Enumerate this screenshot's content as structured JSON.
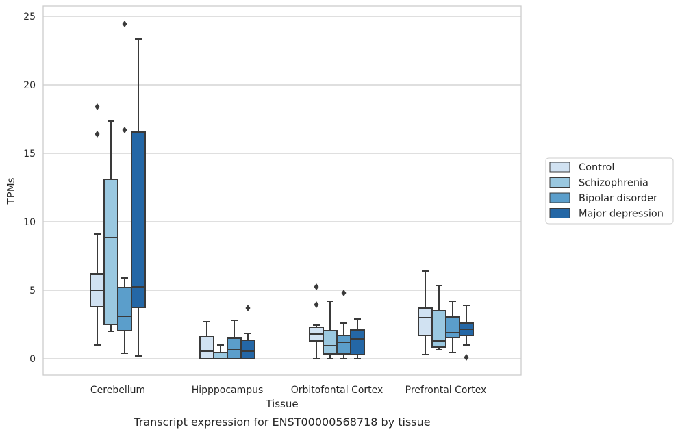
{
  "chart_data": {
    "type": "box",
    "title": "Transcript expression for ENST00000568718 by tissue",
    "xlabel": "Tissue",
    "ylabel": "TPMs",
    "ylim": [
      -1.2,
      25.7
    ],
    "yticks": [
      0,
      5,
      10,
      15,
      20,
      25
    ],
    "grid": "horizontal",
    "legend_position": "right",
    "categories": [
      "Cerebellum",
      "Hipppocampus",
      "Orbitofontal Cortex",
      "Prefrontal Cortex"
    ],
    "series": [
      {
        "name": "Control",
        "color": "#d1e2f2",
        "boxes": [
          {
            "whislo": 1.0,
            "q1": 3.8,
            "med": 5.0,
            "q3": 6.2,
            "whishi": 9.1,
            "fliers": [
              16.4,
              18.4
            ]
          },
          {
            "whislo": 0.0,
            "q1": 0.0,
            "med": 0.55,
            "q3": 1.6,
            "whishi": 2.7,
            "fliers": []
          },
          {
            "whislo": 0.0,
            "q1": 1.3,
            "med": 1.8,
            "q3": 2.3,
            "whishi": 2.45,
            "fliers": [
              3.95,
              5.25
            ]
          },
          {
            "whislo": 0.3,
            "q1": 1.7,
            "med": 3.0,
            "q3": 3.7,
            "whishi": 6.4,
            "fliers": []
          }
        ]
      },
      {
        "name": "Schizophrenia",
        "color": "#9ac8e0",
        "boxes": [
          {
            "whislo": 2.0,
            "q1": 2.5,
            "med": 8.85,
            "q3": 13.1,
            "whishi": 17.35,
            "fliers": []
          },
          {
            "whislo": 0.0,
            "q1": 0.0,
            "med": 0.0,
            "q3": 0.45,
            "whishi": 1.0,
            "fliers": []
          },
          {
            "whislo": 0.0,
            "q1": 0.35,
            "med": 0.95,
            "q3": 2.05,
            "whishi": 4.2,
            "fliers": []
          },
          {
            "whislo": 0.65,
            "q1": 0.85,
            "med": 1.3,
            "q3": 3.5,
            "whishi": 5.35,
            "fliers": []
          }
        ]
      },
      {
        "name": "Bipolar disorder",
        "color": "#5b9ecb",
        "boxes": [
          {
            "whislo": 0.4,
            "q1": 2.05,
            "med": 3.1,
            "q3": 5.2,
            "whishi": 5.9,
            "fliers": [
              16.7,
              24.45
            ]
          },
          {
            "whislo": 0.0,
            "q1": 0.0,
            "med": 0.65,
            "q3": 1.5,
            "whishi": 2.8,
            "fliers": []
          },
          {
            "whislo": 0.0,
            "q1": 0.35,
            "med": 1.2,
            "q3": 1.7,
            "whishi": 2.6,
            "fliers": [
              4.8
            ]
          },
          {
            "whislo": 0.45,
            "q1": 1.55,
            "med": 1.9,
            "q3": 3.05,
            "whishi": 4.2,
            "fliers": []
          }
        ]
      },
      {
        "name": "Major depression",
        "color": "#2467a6",
        "boxes": [
          {
            "whislo": 0.2,
            "q1": 3.75,
            "med": 5.25,
            "q3": 16.55,
            "whishi": 23.35,
            "fliers": []
          },
          {
            "whislo": 0.0,
            "q1": 0.0,
            "med": 0.55,
            "q3": 1.35,
            "whishi": 1.85,
            "fliers": [
              3.7
            ]
          },
          {
            "whislo": 0.0,
            "q1": 0.3,
            "med": 1.45,
            "q3": 2.1,
            "whishi": 2.9,
            "fliers": []
          },
          {
            "whislo": 1.0,
            "q1": 1.7,
            "med": 2.15,
            "q3": 2.6,
            "whishi": 3.9,
            "fliers": [
              0.1
            ]
          }
        ]
      }
    ]
  }
}
